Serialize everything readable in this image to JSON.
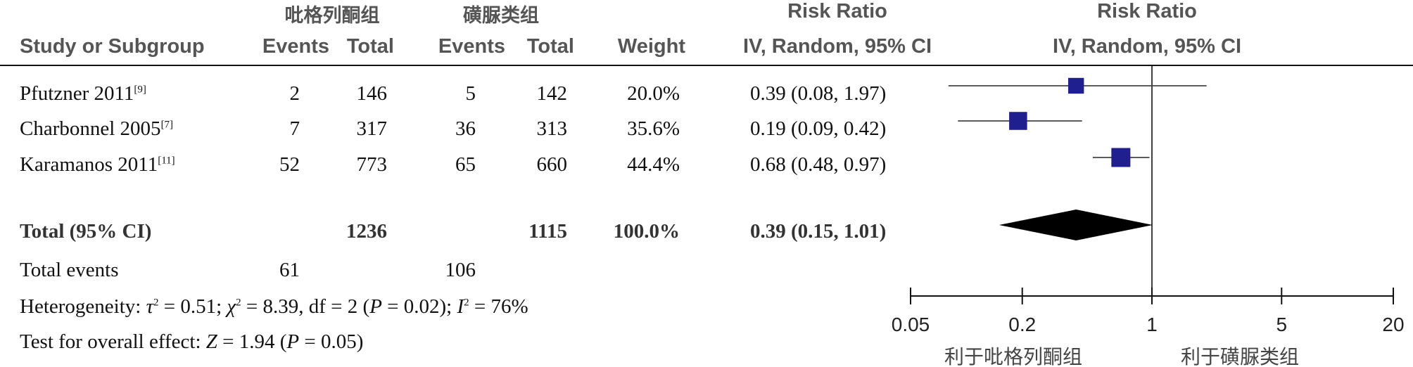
{
  "header": {
    "group1_name": "吡格列酮组",
    "group2_name": "磺脲类组",
    "study_col": "Study or Subgroup",
    "events_label": "Events",
    "total_label": "Total",
    "weight_label": "Weight",
    "rr_title": "Risk Ratio",
    "rr_method": "IV, Random, 95% CI"
  },
  "studies": [
    {
      "name": "Pfutzner 2011",
      "ref": "[9]",
      "e1": "2",
      "t1": "146",
      "e2": "5",
      "t2": "142",
      "weight": "20.0%",
      "ci_text": "0.39 (0.08, 1.97)"
    },
    {
      "name": "Charbonnel 2005",
      "ref": "[7]",
      "e1": "7",
      "t1": "317",
      "e2": "36",
      "t2": "313",
      "weight": "35.6%",
      "ci_text": "0.19 (0.09, 0.42)"
    },
    {
      "name": "Karamanos 2011",
      "ref": "[11]",
      "e1": "52",
      "t1": "773",
      "e2": "65",
      "t2": "660",
      "weight": "44.4%",
      "ci_text": "0.68 (0.48, 0.97)"
    }
  ],
  "total": {
    "label": "Total (95% CI)",
    "t1": "1236",
    "t2": "1115",
    "weight": "100.0%",
    "ci_text": "0.39 (0.15, 1.01)"
  },
  "total_events": {
    "label": "Total events",
    "e1": "61",
    "e2": "106"
  },
  "heterogeneity": {
    "prefix": "Heterogeneity: ",
    "tau": "τ",
    "tau_rest": " = 0.51; ",
    "chi": "χ",
    "chi_rest": " = 8.39, df = 2 (",
    "p1": "P",
    "p1_rest": " = 0.02); ",
    "i": "I",
    "i_rest": " = 76%"
  },
  "overall": {
    "prefix": "Test for overall effect: ",
    "z": "Z",
    "z_rest": " = 1.94 (",
    "p": "P",
    "p_rest": " = 0.05)"
  },
  "axis": {
    "favours_left": "利于吡格列酮组",
    "favours_right": "利于磺脲类组"
  },
  "chart_data": {
    "type": "forest",
    "scale": "log",
    "xlim": [
      0.05,
      20
    ],
    "ticks": [
      0.05,
      0.2,
      1,
      5,
      20
    ],
    "tick_labels": [
      "0.05",
      "0.2",
      "1",
      "5",
      "20"
    ],
    "reference_line": 1,
    "points": [
      {
        "study": "Pfutzner 2011",
        "rr": 0.39,
        "lower": 0.08,
        "upper": 1.97,
        "weight": 20.0
      },
      {
        "study": "Charbonnel 2005",
        "rr": 0.19,
        "lower": 0.09,
        "upper": 0.42,
        "weight": 35.6
      },
      {
        "study": "Karamanos 2011",
        "rr": 0.68,
        "lower": 0.48,
        "upper": 0.97,
        "weight": 44.4
      }
    ],
    "summary": {
      "rr": 0.39,
      "lower": 0.15,
      "upper": 1.01
    },
    "colors": {
      "square": "#1f1f8f",
      "diamond": "#000000",
      "lines": "#444444"
    }
  }
}
